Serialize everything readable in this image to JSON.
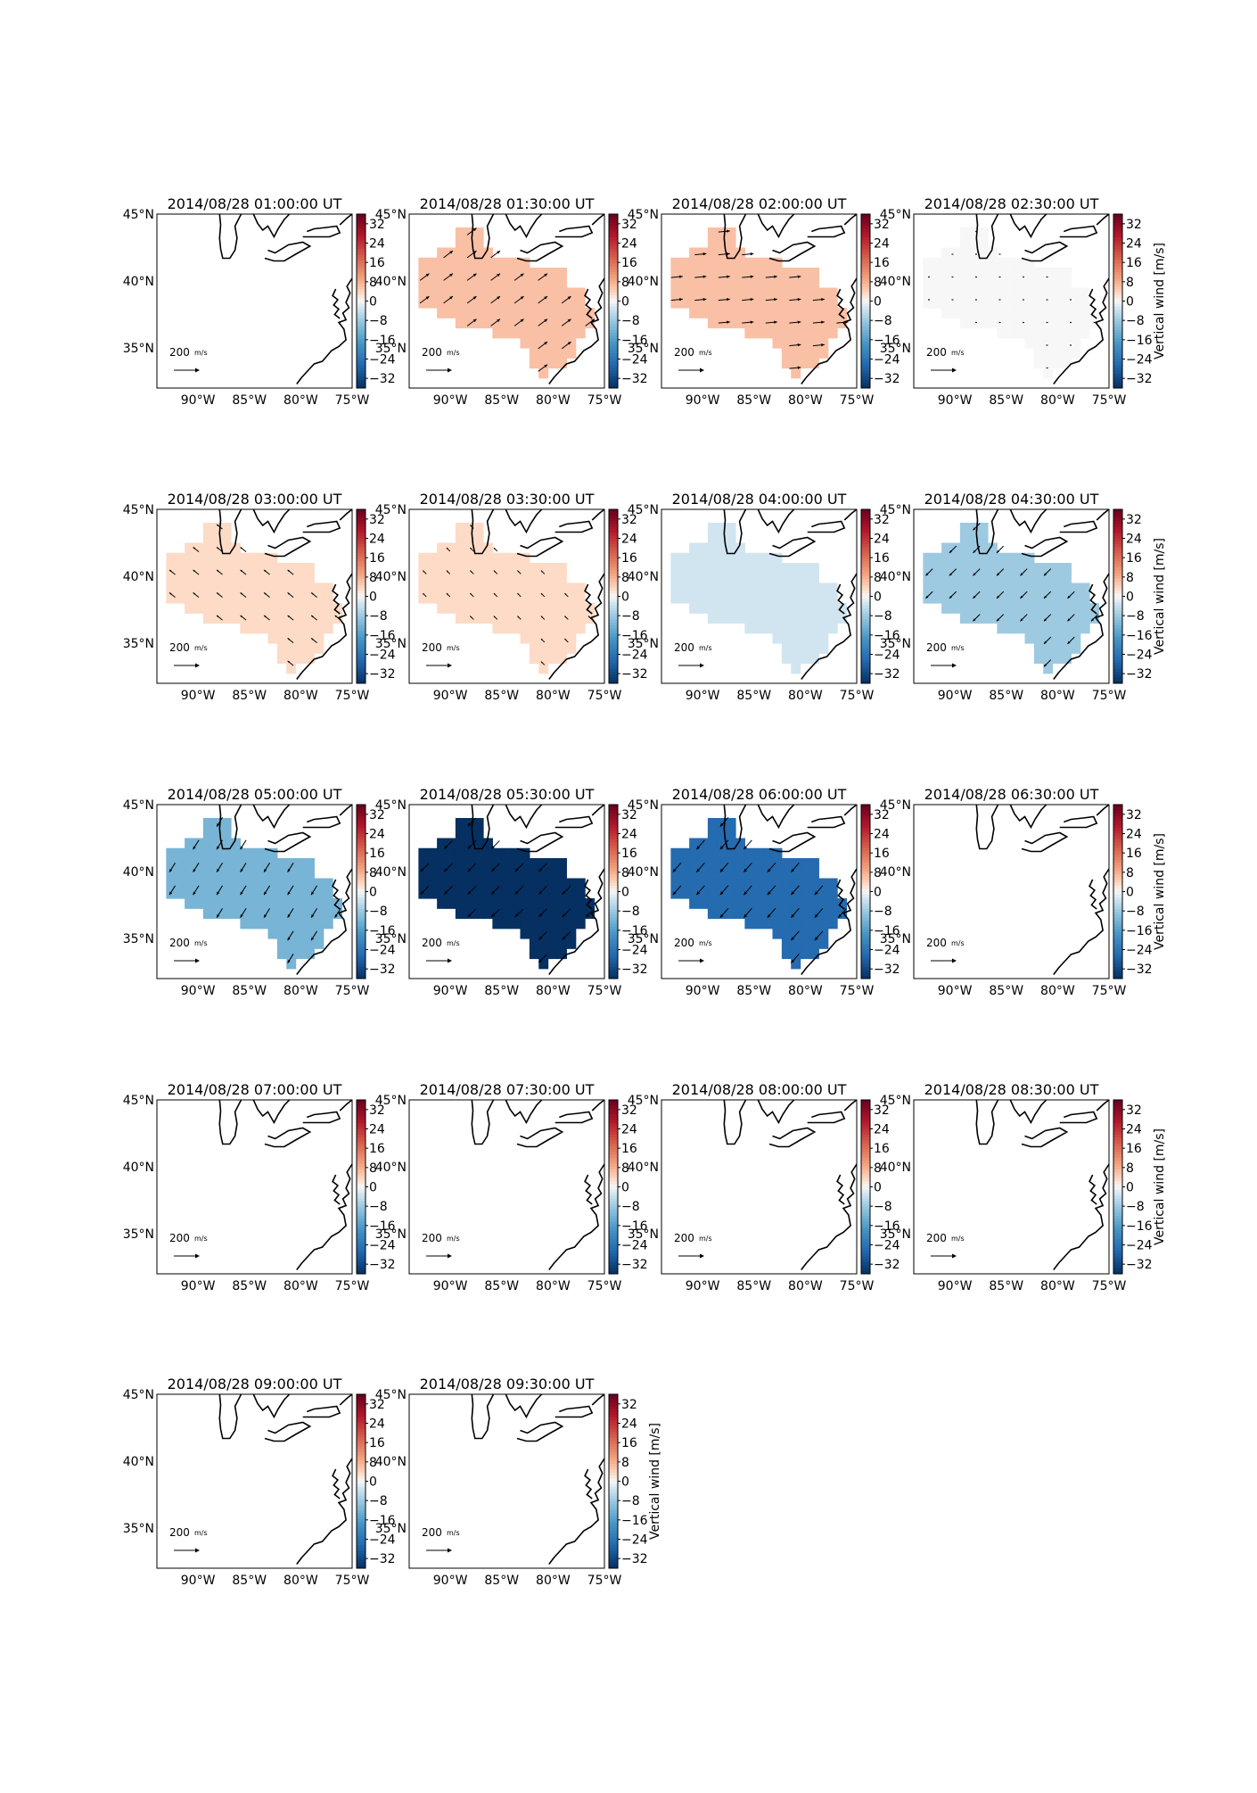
{
  "figure": {
    "colorbar_label": "Vertical wind [m/s]",
    "colorbar_ticks": [
      "32",
      "24",
      "16",
      "8",
      "0",
      "−8",
      "−16",
      "−24",
      "−32"
    ],
    "colorbar_range": [
      -36,
      36
    ],
    "xticks": [
      "90°W",
      "85°W",
      "80°W",
      "75°W"
    ],
    "yticks": [
      "45°N",
      "40°N",
      "35°N"
    ],
    "quiver_key_value": "200",
    "quiver_key_unit": "m/s",
    "colormap": "RdBu_r",
    "colors": {
      "coast": "#000000",
      "blank": "#ffffff"
    }
  },
  "chart_data": [
    {
      "type": "heatmap",
      "title": "2014/08/28 01:00:00 UT",
      "vertical_wind": null,
      "arrow_u": 0,
      "arrow_v": 0,
      "xlim": [
        "94°W",
        "75°W"
      ],
      "ylim": [
        "32°N",
        "45°N"
      ]
    },
    {
      "type": "heatmap",
      "title": "2014/08/28 01:30:00 UT",
      "vertical_wind": 6,
      "arrow_u": 0.8,
      "arrow_v": 0.6,
      "xlim": [
        "94°W",
        "75°W"
      ],
      "ylim": [
        "32°N",
        "45°N"
      ]
    },
    {
      "type": "heatmap",
      "title": "2014/08/28 02:00:00 UT",
      "vertical_wind": 6,
      "arrow_u": 1,
      "arrow_v": 0.1,
      "xlim": [
        "94°W",
        "75°W"
      ],
      "ylim": [
        "32°N",
        "45°N"
      ]
    },
    {
      "type": "heatmap",
      "title": "2014/08/28 02:30:00 UT",
      "vertical_wind": 0,
      "arrow_u": 0.1,
      "arrow_v": 0,
      "xlim": [
        "94°W",
        "75°W"
      ],
      "ylim": [
        "32°N",
        "45°N"
      ]
    },
    {
      "type": "heatmap",
      "title": "2014/08/28 03:00:00 UT",
      "vertical_wind": 3,
      "arrow_u": -0.5,
      "arrow_v": 0.4,
      "xlim": [
        "94°W",
        "75°W"
      ],
      "ylim": [
        "32°N",
        "45°N"
      ]
    },
    {
      "type": "heatmap",
      "title": "2014/08/28 03:30:00 UT",
      "vertical_wind": 3,
      "arrow_u": -0.3,
      "arrow_v": 0.3,
      "xlim": [
        "94°W",
        "75°W"
      ],
      "ylim": [
        "32°N",
        "45°N"
      ]
    },
    {
      "type": "heatmap",
      "title": "2014/08/28 04:00:00 UT",
      "vertical_wind": -3,
      "arrow_u": 0,
      "arrow_v": 0,
      "xlim": [
        "94°W",
        "75°W"
      ],
      "ylim": [
        "32°N",
        "45°N"
      ]
    },
    {
      "type": "heatmap",
      "title": "2014/08/28 04:30:00 UT",
      "vertical_wind": -8,
      "arrow_u": -0.6,
      "arrow_v": -0.6,
      "xlim": [
        "94°W",
        "75°W"
      ],
      "ylim": [
        "32°N",
        "45°N"
      ]
    },
    {
      "type": "heatmap",
      "title": "2014/08/28 05:00:00 UT",
      "vertical_wind": -12,
      "arrow_u": -0.5,
      "arrow_v": -0.8,
      "xlim": [
        "94°W",
        "75°W"
      ],
      "ylim": [
        "32°N",
        "45°N"
      ]
    },
    {
      "type": "heatmap",
      "title": "2014/08/28 05:30:00 UT",
      "vertical_wind": -36,
      "arrow_u": -0.7,
      "arrow_v": -0.7,
      "xlim": [
        "94°W",
        "75°W"
      ],
      "ylim": [
        "32°N",
        "45°N"
      ]
    },
    {
      "type": "heatmap",
      "title": "2014/08/28 06:00:00 UT",
      "vertical_wind": -26,
      "arrow_u": -0.7,
      "arrow_v": -0.8,
      "xlim": [
        "94°W",
        "75°W"
      ],
      "ylim": [
        "32°N",
        "45°N"
      ]
    },
    {
      "type": "heatmap",
      "title": "2014/08/28 06:30:00 UT",
      "vertical_wind": null,
      "arrow_u": 0,
      "arrow_v": 0,
      "xlim": [
        "94°W",
        "75°W"
      ],
      "ylim": [
        "32°N",
        "45°N"
      ]
    },
    {
      "type": "heatmap",
      "title": "2014/08/28 07:00:00 UT",
      "vertical_wind": null,
      "arrow_u": 0,
      "arrow_v": 0,
      "xlim": [
        "94°W",
        "75°W"
      ],
      "ylim": [
        "32°N",
        "45°N"
      ]
    },
    {
      "type": "heatmap",
      "title": "2014/08/28 07:30:00 UT",
      "vertical_wind": null,
      "arrow_u": 0,
      "arrow_v": 0,
      "xlim": [
        "94°W",
        "75°W"
      ],
      "ylim": [
        "32°N",
        "45°N"
      ]
    },
    {
      "type": "heatmap",
      "title": "2014/08/28 08:00:00 UT",
      "vertical_wind": null,
      "arrow_u": 0,
      "arrow_v": 0,
      "xlim": [
        "94°W",
        "75°W"
      ],
      "ylim": [
        "32°N",
        "45°N"
      ]
    },
    {
      "type": "heatmap",
      "title": "2014/08/28 08:30:00 UT",
      "vertical_wind": null,
      "arrow_u": 0,
      "arrow_v": 0,
      "xlim": [
        "94°W",
        "75°W"
      ],
      "ylim": [
        "32°N",
        "45°N"
      ]
    },
    {
      "type": "heatmap",
      "title": "2014/08/28 09:00:00 UT",
      "vertical_wind": null,
      "arrow_u": 0,
      "arrow_v": 0,
      "xlim": [
        "94°W",
        "75°W"
      ],
      "ylim": [
        "32°N",
        "45°N"
      ]
    },
    {
      "type": "heatmap",
      "title": "2014/08/28 09:30:00 UT",
      "vertical_wind": null,
      "arrow_u": 0,
      "arrow_v": 0,
      "xlim": [
        "94°W",
        "75°W"
      ],
      "ylim": [
        "32°N",
        "45°N"
      ]
    }
  ]
}
